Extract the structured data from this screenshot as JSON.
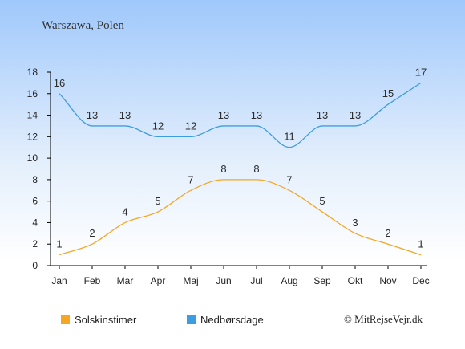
{
  "chart_data": {
    "type": "line",
    "title": "Warszawa, Polen",
    "categories": [
      "Jan",
      "Feb",
      "Mar",
      "Apr",
      "Maj",
      "Jun",
      "Jul",
      "Aug",
      "Sep",
      "Okt",
      "Nov",
      "Dec"
    ],
    "series": [
      {
        "name": "Solskinstimer",
        "values": [
          1,
          2,
          4,
          5,
          7,
          8,
          8,
          7,
          5,
          3,
          2,
          1
        ],
        "color": "#f5a623"
      },
      {
        "name": "Nedbørsdage",
        "values": [
          16,
          13,
          13,
          12,
          12,
          13,
          13,
          11,
          13,
          13,
          15,
          17
        ],
        "color": "#3c9de0"
      }
    ],
    "yticks": [
      0,
      2,
      4,
      6,
      8,
      10,
      12,
      14,
      16,
      18
    ],
    "ylim": [
      0,
      18
    ],
    "grid": false,
    "legend_position": "bottom-left",
    "credit": "© MitRejseVejr.dk",
    "background_top_color": "#9fc8fb",
    "background_bottom_color": "#ffffff"
  }
}
